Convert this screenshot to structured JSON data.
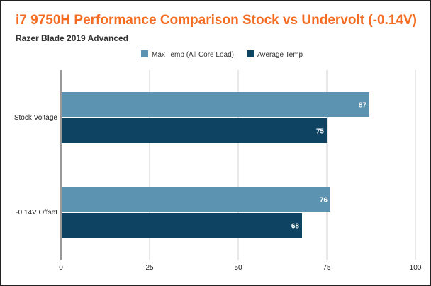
{
  "chart_data": {
    "type": "bar",
    "orientation": "horizontal",
    "title": "i7 9750H Performance Comparison Stock vs Undervolt (-0.14V)",
    "subtitle": "Razer Blade 2019 Advanced",
    "categories": [
      "Stock Voltage",
      "-0.14V Offset"
    ],
    "series": [
      {
        "name": "Max Temp (All Core Load)",
        "color": "#5b93b0",
        "values": [
          87,
          76
        ]
      },
      {
        "name": "Average Temp",
        "color": "#0e4462",
        "values": [
          75,
          68
        ]
      }
    ],
    "xlim": [
      0,
      100
    ],
    "xticks": [
      "0",
      "25",
      "50",
      "75",
      "100"
    ],
    "xlabel": "",
    "ylabel": "",
    "grid": true,
    "legend_position": "top-center",
    "data_labels": true
  },
  "colors": {
    "title": "#f36c21",
    "grid": "#d0d0d0"
  }
}
